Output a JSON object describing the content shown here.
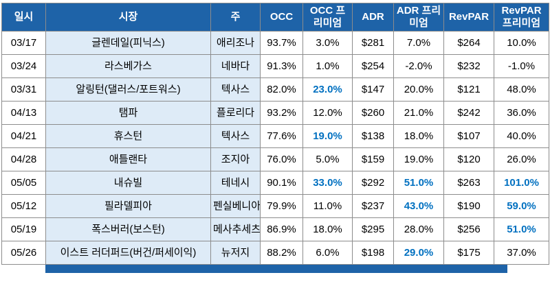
{
  "chart_data": {
    "type": "table",
    "title": "",
    "column_keys": [
      "date",
      "market",
      "state",
      "occ",
      "occ-premium",
      "adr",
      "adr-premium",
      "revpar",
      "revpar-premium"
    ],
    "columns": [
      "일시",
      "시장",
      "주",
      "OCC",
      "OCC 프리미엄",
      "ADR",
      "ADR 프리미엄",
      "RevPAR",
      "RevPAR 프리미엄"
    ],
    "rows": [
      [
        "03/17",
        "글렌데일(피닉스)",
        "애리조나",
        "93.7%",
        "3.0%",
        "$281",
        "7.0%",
        "$264",
        "10.0%"
      ],
      [
        "03/24",
        "라스베가스",
        "네바다",
        "91.3%",
        "1.0%",
        "$254",
        "-2.0%",
        "$232",
        "-1.0%"
      ],
      [
        "03/31",
        "알링턴(댈러스/포트워스)",
        "텍사스",
        "82.0%",
        "23.0%",
        "$147",
        "20.0%",
        "$121",
        "48.0%"
      ],
      [
        "04/13",
        "탬파",
        "플로리다",
        "93.2%",
        "12.0%",
        "$260",
        "21.0%",
        "$242",
        "36.0%"
      ],
      [
        "04/21",
        "휴스턴",
        "텍사스",
        "77.6%",
        "19.0%",
        "$138",
        "18.0%",
        "$107",
        "40.0%"
      ],
      [
        "04/28",
        "애틀랜타",
        "조지아",
        "76.0%",
        "5.0%",
        "$159",
        "19.0%",
        "$120",
        "26.0%"
      ],
      [
        "05/05",
        "내슈빌",
        "테네시",
        "90.1%",
        "33.0%",
        "$292",
        "51.0%",
        "$263",
        "101.0%"
      ],
      [
        "05/12",
        "필라델피아",
        "펜실베니아",
        "79.9%",
        "11.0%",
        "$237",
        "43.0%",
        "$190",
        "59.0%"
      ],
      [
        "05/19",
        "폭스버러(보스턴)",
        "메사추세츠",
        "86.9%",
        "18.0%",
        "$295",
        "28.0%",
        "$256",
        "51.0%"
      ],
      [
        "05/26",
        "이스트 러더퍼드(버건/퍼세이익)",
        "뉴저지",
        "88.2%",
        "6.0%",
        "$198",
        "29.0%",
        "$175",
        "37.0%"
      ]
    ],
    "highlight_cells": [
      [
        2,
        4
      ],
      [
        4,
        4
      ],
      [
        6,
        4
      ],
      [
        6,
        6
      ],
      [
        6,
        8
      ],
      [
        7,
        6
      ],
      [
        7,
        8
      ],
      [
        8,
        8
      ],
      [
        9,
        6
      ]
    ],
    "tinted_columns": [
      1,
      2
    ],
    "legend_position": "none",
    "grid": true
  },
  "colors": {
    "header_bg": "#1E63A8",
    "header_text": "#FFFFFF",
    "tint_bg": "#DEEBF7",
    "hl_text": "#0070C0",
    "border": "#8C8C8C",
    "body_text": "#000000",
    "footer_bar": "#1E63A8"
  }
}
